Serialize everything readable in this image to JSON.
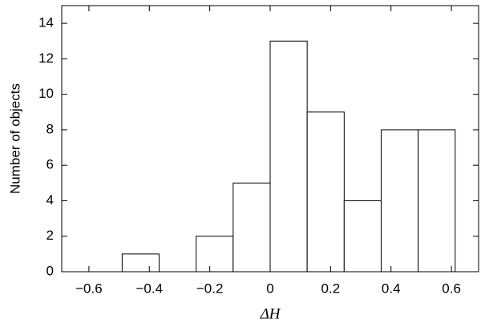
{
  "chart_data": {
    "type": "histogram",
    "xlabel": "ΔH",
    "ylabel": "Number of objects",
    "bins": [
      -0.49,
      -0.3675,
      -0.245,
      -0.1225,
      0,
      0.1225,
      0.245,
      0.3675,
      0.49,
      0.6125
    ],
    "values": [
      1,
      0,
      2,
      5,
      13,
      9,
      4,
      8,
      8
    ],
    "color": "#ffffff",
    "xlim": [
      -0.69,
      0.69
    ],
    "ylim": [
      0,
      15
    ],
    "xticks": [
      {
        "value": -0.6,
        "label": "−0.6"
      },
      {
        "value": -0.4,
        "label": "−0.4"
      },
      {
        "value": -0.2,
        "label": "−0.2"
      },
      0,
      0.2,
      0.4,
      0.6
    ],
    "yticks": [
      0,
      2,
      4,
      6,
      8,
      10,
      12,
      14
    ],
    "grid": false
  }
}
